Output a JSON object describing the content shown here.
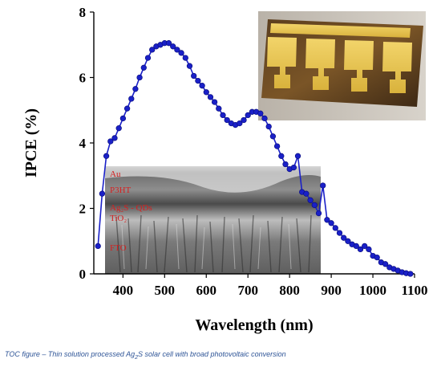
{
  "chart_data": {
    "type": "line",
    "xlabel": "Wavelength (nm)",
    "ylabel": "IPCE (%)",
    "xlim": [
      330,
      1100
    ],
    "ylim": [
      0,
      8
    ],
    "xticks": [
      400,
      500,
      600,
      700,
      800,
      900,
      1000,
      1100
    ],
    "yticks": [
      0,
      2,
      4,
      6,
      8
    ],
    "series": [
      {
        "color": "#1a20c8",
        "marker": "circle",
        "x": [
          340,
          350,
          360,
          370,
          380,
          390,
          400,
          410,
          420,
          430,
          440,
          450,
          460,
          470,
          480,
          490,
          500,
          510,
          520,
          530,
          540,
          550,
          560,
          570,
          580,
          590,
          600,
          610,
          620,
          630,
          640,
          650,
          660,
          670,
          680,
          690,
          700,
          710,
          720,
          730,
          740,
          750,
          760,
          770,
          780,
          790,
          800,
          810,
          820,
          830,
          840,
          850,
          860,
          870,
          880,
          890,
          900,
          910,
          920,
          930,
          940,
          950,
          960,
          970,
          980,
          990,
          1000,
          1010,
          1020,
          1030,
          1040,
          1050,
          1060,
          1070,
          1080,
          1090
        ],
        "values": [
          0.85,
          2.45,
          3.6,
          4.05,
          4.15,
          4.45,
          4.75,
          5.05,
          5.35,
          5.65,
          6.0,
          6.3,
          6.6,
          6.85,
          6.95,
          7.0,
          7.05,
          7.05,
          6.95,
          6.85,
          6.75,
          6.6,
          6.35,
          6.05,
          5.9,
          5.75,
          5.55,
          5.4,
          5.25,
          5.05,
          4.85,
          4.7,
          4.6,
          4.55,
          4.6,
          4.7,
          4.85,
          4.95,
          4.95,
          4.9,
          4.75,
          4.5,
          4.2,
          3.9,
          3.6,
          3.35,
          3.2,
          3.25,
          3.6,
          2.5,
          2.45,
          2.25,
          2.1,
          1.85,
          2.7,
          1.65,
          1.55,
          1.4,
          1.25,
          1.1,
          1.0,
          0.9,
          0.85,
          0.75,
          0.85,
          0.75,
          0.55,
          0.5,
          0.35,
          0.3,
          0.2,
          0.15,
          0.1,
          0.05,
          0.02,
          0.0
        ]
      }
    ],
    "inset_layers": [
      "Au",
      "P3HT",
      "Ag₂S - QDs",
      "TiO₂",
      "FTO"
    ],
    "grid": false
  },
  "caption": {
    "lead": "TOC figure – Thin solution processed Ag",
    "sub": "2",
    "tail": "S solar cell with broad photovoltaic conversion"
  }
}
